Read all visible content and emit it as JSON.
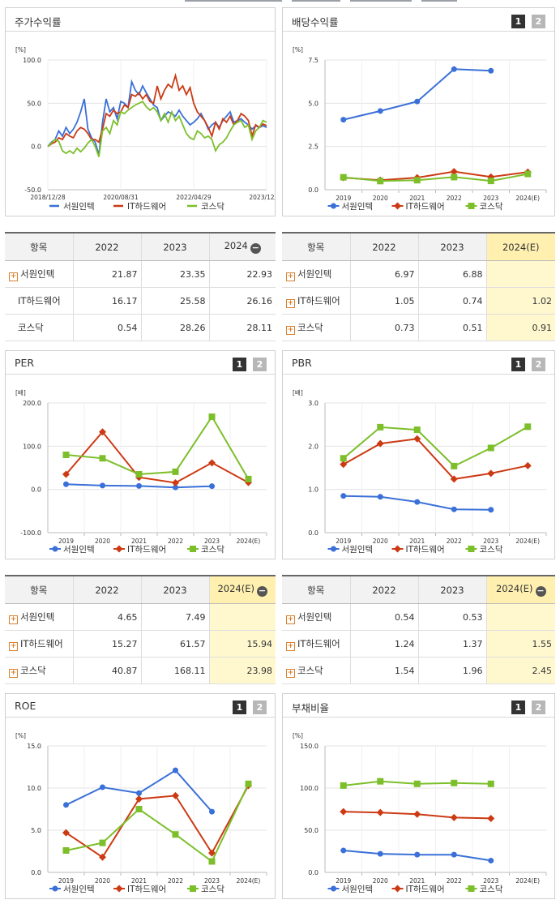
{
  "ui": {
    "expand": "+",
    "collapse": "−"
  },
  "palette": {
    "seowon": "#3a70d8",
    "it_hw": "#cc3a14",
    "kosdaq": "#7cbf2a"
  },
  "panels": [
    {
      "id": "p1",
      "title": "주가수익률",
      "toggles": [],
      "chart_data": {
        "type": "line",
        "unit": "[%]",
        "ylim": [
          -50,
          100
        ],
        "yticks": [
          "100.0",
          "50.0",
          "0.0",
          "-50.0"
        ],
        "xlabels": [
          "2018/12/28",
          "2020/08/31",
          "2022/04/29",
          "2023/12/28"
        ],
        "x": [
          "2018/12/28",
          "2019/01",
          "2019/02",
          "2019/03",
          "2019/04",
          "2019/05",
          "2019/06",
          "2019/07",
          "2019/08",
          "2019/09",
          "2019/10",
          "2019/11",
          "2019/12",
          "2020/01",
          "2020/02",
          "2020/03",
          "2020/04",
          "2020/05",
          "2020/06",
          "2020/07",
          "2020/08/31",
          "2020/09",
          "2020/10",
          "2020/11",
          "2020/12",
          "2021/01",
          "2021/02",
          "2021/03",
          "2021/04",
          "2021/05",
          "2021/06",
          "2021/07",
          "2021/08",
          "2021/09",
          "2021/10",
          "2021/11",
          "2021/12",
          "2022/01",
          "2022/02",
          "2022/03",
          "2022/04/29",
          "2022/05",
          "2022/06",
          "2022/07",
          "2022/08",
          "2022/09",
          "2022/10",
          "2022/11",
          "2022/12",
          "2023/01",
          "2023/02",
          "2023/03",
          "2023/04",
          "2023/05",
          "2023/06",
          "2023/07",
          "2023/08",
          "2023/09",
          "2023/10",
          "2023/11",
          "2023/12/28"
        ],
        "series": [
          {
            "name": "서원인텍",
            "values": [
              0,
              5,
              8,
              18,
              12,
              22,
              15,
              20,
              28,
              40,
              55,
              20,
              10,
              5,
              -10,
              28,
              55,
              40,
              45,
              32,
              52,
              50,
              45,
              75,
              65,
              60,
              70,
              62,
              55,
              48,
              45,
              30,
              35,
              40,
              38,
              35,
              42,
              35,
              30,
              25,
              28,
              32,
              38,
              30,
              20,
              25,
              28,
              22,
              30,
              35,
              40,
              28,
              30,
              32,
              28,
              25,
              20,
              24,
              22,
              24,
              22
            ]
          },
          {
            "name": "IT하드웨어",
            "values": [
              0,
              3,
              5,
              10,
              8,
              15,
              12,
              10,
              18,
              22,
              20,
              15,
              8,
              8,
              5,
              20,
              38,
              35,
              42,
              38,
              40,
              48,
              45,
              60,
              58,
              62,
              55,
              60,
              52,
              50,
              70,
              55,
              65,
              72,
              68,
              82,
              65,
              70,
              60,
              68,
              50,
              40,
              35,
              30,
              22,
              12,
              28,
              20,
              32,
              28,
              35,
              25,
              30,
              38,
              35,
              30,
              12,
              25,
              22,
              26,
              24
            ]
          },
          {
            "name": "코스닥",
            "values": [
              0,
              4,
              8,
              6,
              -5,
              -8,
              -5,
              -8,
              -2,
              -6,
              -2,
              4,
              8,
              0,
              -12,
              18,
              22,
              15,
              30,
              25,
              40,
              38,
              42,
              45,
              48,
              50,
              52,
              46,
              42,
              45,
              40,
              30,
              38,
              28,
              40,
              30,
              35,
              25,
              15,
              10,
              8,
              18,
              15,
              10,
              12,
              8,
              -5,
              2,
              5,
              10,
              18,
              25,
              28,
              30,
              22,
              25,
              8,
              18,
              22,
              30,
              28
            ]
          }
        ]
      }
    },
    {
      "id": "p2",
      "title": "배당수익률",
      "toggles": [
        "1",
        "2"
      ],
      "chart_data": {
        "type": "line",
        "unit": "[%]",
        "ylim": [
          0,
          7.5
        ],
        "yticks": [
          "7.5",
          "5.0",
          "2.5",
          "0.0"
        ],
        "categories": [
          "2019",
          "2020",
          "2021",
          "2022",
          "2023",
          "2024(E)"
        ],
        "series": [
          {
            "name": "서원인텍",
            "values": [
              4.05,
              4.55,
              5.1,
              6.97,
              6.88,
              null
            ]
          },
          {
            "name": "IT하드웨어",
            "values": [
              0.7,
              0.55,
              0.7,
              1.05,
              0.74,
              1.02
            ]
          },
          {
            "name": "코스닥",
            "values": [
              0.72,
              0.5,
              0.55,
              0.73,
              0.51,
              0.91
            ]
          }
        ]
      }
    },
    {
      "id": "p3",
      "title": "PER",
      "toggles": [
        "1",
        "2"
      ],
      "chart_data": {
        "type": "line",
        "unit": "[배]",
        "ylim": [
          -100,
          200
        ],
        "yticks": [
          "200.0",
          "100.0",
          "0.0",
          "-100.0"
        ],
        "categories": [
          "2019",
          "2020",
          "2021",
          "2022",
          "2023",
          "2024(E)"
        ],
        "series": [
          {
            "name": "서원인텍",
            "values": [
              12,
              9,
              8,
              4.65,
              7.49,
              null
            ]
          },
          {
            "name": "IT하드웨어",
            "values": [
              35,
              133,
              28,
              15.27,
              61.57,
              15.94
            ]
          },
          {
            "name": "코스닥",
            "values": [
              80,
              72,
              35,
              40.87,
              168.11,
              23.98
            ]
          }
        ]
      }
    },
    {
      "id": "p4",
      "title": "PBR",
      "toggles": [
        "1",
        "2"
      ],
      "chart_data": {
        "type": "line",
        "unit": "[배]",
        "ylim": [
          0,
          3
        ],
        "yticks": [
          "3.0",
          "2.0",
          "1.0",
          "0.0"
        ],
        "categories": [
          "2019",
          "2020",
          "2021",
          "2022",
          "2023",
          "2024(E)"
        ],
        "series": [
          {
            "name": "서원인텍",
            "values": [
              0.85,
              0.83,
              0.71,
              0.54,
              0.53,
              null
            ]
          },
          {
            "name": "IT하드웨어",
            "values": [
              1.58,
              2.06,
              2.17,
              1.24,
              1.37,
              1.55
            ]
          },
          {
            "name": "코스닥",
            "values": [
              1.72,
              2.44,
              2.38,
              1.54,
              1.96,
              2.45
            ]
          }
        ]
      }
    },
    {
      "id": "p5",
      "title": "ROE",
      "toggles": [
        "1",
        "2"
      ],
      "chart_data": {
        "type": "line",
        "unit": "[%]",
        "ylim": [
          0,
          15
        ],
        "yticks": [
          "15.0",
          "10.0",
          "5.0",
          "0.0"
        ],
        "categories": [
          "2019",
          "2020",
          "2021",
          "2022",
          "2023",
          "2024(E)"
        ],
        "series": [
          {
            "name": "서원인텍",
            "values": [
              8.0,
              10.1,
              9.4,
              12.1,
              7.2,
              null
            ]
          },
          {
            "name": "IT하드웨어",
            "values": [
              4.7,
              1.8,
              8.7,
              9.1,
              2.3,
              10.3
            ]
          },
          {
            "name": "코스닥",
            "values": [
              2.6,
              3.5,
              7.5,
              4.5,
              1.3,
              10.5
            ]
          }
        ]
      }
    },
    {
      "id": "p6",
      "title": "부채비율",
      "toggles": [
        "1",
        "2"
      ],
      "chart_data": {
        "type": "line",
        "unit": "[%]",
        "ylim": [
          0,
          150
        ],
        "yticks": [
          "150.0",
          "100.0",
          "50.0",
          "0.0"
        ],
        "categories": [
          "2019",
          "2020",
          "2021",
          "2022",
          "2023",
          "2024(E)"
        ],
        "series": [
          {
            "name": "서원인텍",
            "values": [
              26,
              22,
              21,
              21,
              14,
              null
            ]
          },
          {
            "name": "IT하드웨어",
            "values": [
              72,
              71,
              69,
              65,
              64,
              null
            ]
          },
          {
            "name": "코스닥",
            "values": [
              103,
              108,
              105,
              106,
              105,
              null
            ]
          }
        ]
      }
    }
  ],
  "tables": [
    {
      "id": "t1",
      "header": [
        "항목",
        "2022",
        "2023",
        "2024"
      ],
      "collapsible": true,
      "highlight_last": false,
      "rows": [
        {
          "label": "서원인텍",
          "plus": true,
          "values": [
            "21.87",
            "23.35",
            "22.93"
          ]
        },
        {
          "label": "IT하드웨어",
          "plus": false,
          "values": [
            "16.17",
            "25.58",
            "26.16"
          ]
        },
        {
          "label": "코스닥",
          "plus": false,
          "values": [
            "0.54",
            "28.26",
            "28.11"
          ]
        }
      ]
    },
    {
      "id": "t2",
      "header": [
        "항목",
        "2022",
        "2023",
        "2024(E)"
      ],
      "collapsible": false,
      "highlight_last": true,
      "rows": [
        {
          "label": "서원인텍",
          "plus": true,
          "values": [
            "6.97",
            "6.88",
            ""
          ]
        },
        {
          "label": "IT하드웨어",
          "plus": true,
          "values": [
            "1.05",
            "0.74",
            "1.02"
          ]
        },
        {
          "label": "코스닥",
          "plus": true,
          "values": [
            "0.73",
            "0.51",
            "0.91"
          ]
        }
      ]
    },
    {
      "id": "t3",
      "header": [
        "항목",
        "2022",
        "2023",
        "2024(E)"
      ],
      "collapsible": true,
      "highlight_last": true,
      "rows": [
        {
          "label": "서원인텍",
          "plus": true,
          "values": [
            "4.65",
            "7.49",
            ""
          ]
        },
        {
          "label": "IT하드웨어",
          "plus": true,
          "values": [
            "15.27",
            "61.57",
            "15.94"
          ]
        },
        {
          "label": "코스닥",
          "plus": true,
          "values": [
            "40.87",
            "168.11",
            "23.98"
          ]
        }
      ]
    },
    {
      "id": "t4",
      "header": [
        "항목",
        "2022",
        "2023",
        "2024(E)"
      ],
      "collapsible": true,
      "highlight_last": true,
      "rows": [
        {
          "label": "서원인텍",
          "plus": true,
          "values": [
            "0.54",
            "0.53",
            ""
          ]
        },
        {
          "label": "IT하드웨어",
          "plus": true,
          "values": [
            "1.24",
            "1.37",
            "1.55"
          ]
        },
        {
          "label": "코스닥",
          "plus": true,
          "values": [
            "1.54",
            "1.96",
            "2.45"
          ]
        }
      ]
    }
  ]
}
